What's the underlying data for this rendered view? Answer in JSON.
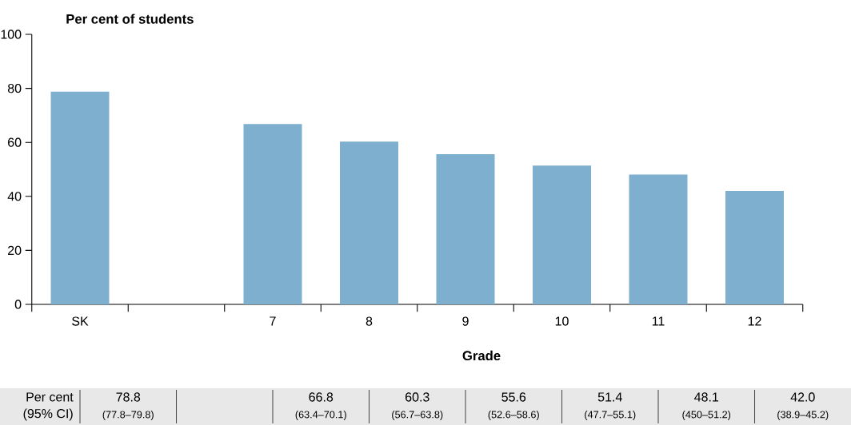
{
  "chart_data": {
    "type": "bar",
    "ylabel": "Per cent of students",
    "xlabel": "Grade",
    "categories": [
      "SK",
      null,
      "7",
      "8",
      "9",
      "10",
      "11",
      "12"
    ],
    "values": [
      78.8,
      null,
      66.8,
      60.3,
      55.6,
      51.4,
      48.1,
      42.0
    ],
    "color": "#7fafcf",
    "ylim": [
      0,
      100
    ],
    "yticks": [
      0,
      20,
      40,
      60,
      80,
      100
    ],
    "value_labels": [
      "78.8",
      null,
      "66.8",
      "60.3",
      "55.6",
      "51.4",
      "48.1",
      "42.0"
    ],
    "annotations": [
      "Per cent",
      "(95% CI)",
      "(77.8–79.8)",
      "(63.4–70.1)",
      "(56.7–63.8)",
      "(52.6–58.6)",
      "(47.7–55.1)",
      "(450–51.2)",
      "(38.9–45.2)"
    ]
  }
}
